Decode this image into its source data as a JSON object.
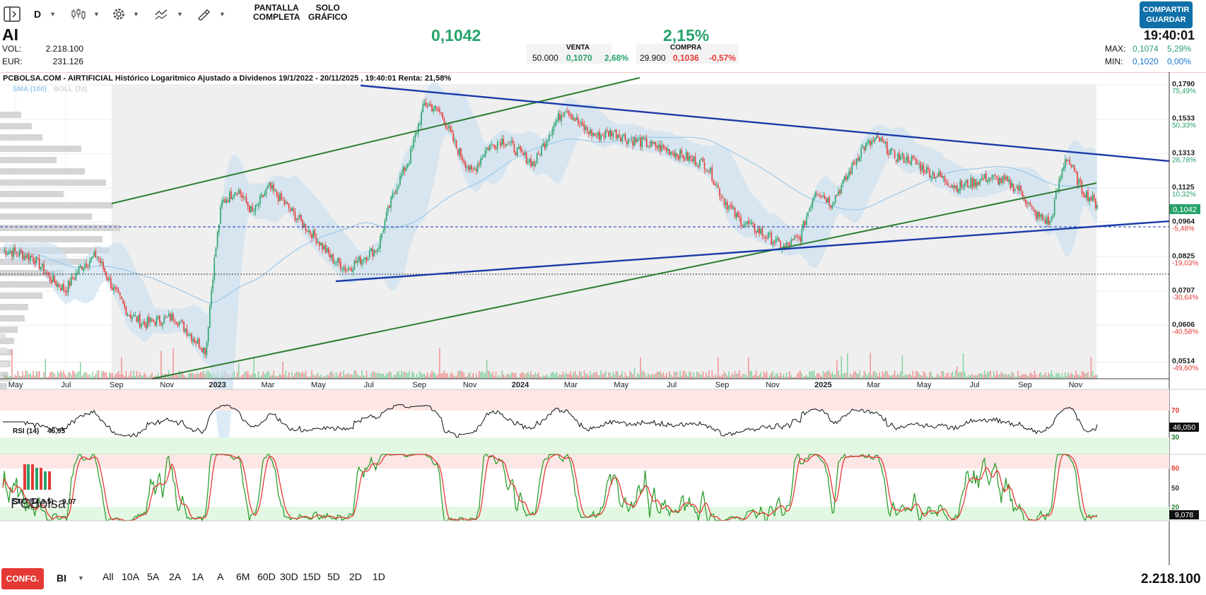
{
  "toolbar": {
    "period": "D",
    "fullscreen_label_1": "PANTALLA",
    "fullscreen_label_2": "COMPLETA",
    "only_chart_label_1": "SOLO",
    "only_chart_label_2": "GRÁFICO",
    "share_label_1": "COMPARTIR",
    "share_label_2": "GUARDAR"
  },
  "quote": {
    "ticker": "AI",
    "vol_label": "VOL:",
    "vol_value": "2.218.100",
    "eur_label": "EUR:",
    "eur_value": "231.126",
    "last_price": "0,1042",
    "change_pct": "2,15%",
    "time": "19:40:01",
    "max_label": "MAX:",
    "max_value": "0,1074",
    "max_pct": "5,29%",
    "min_label": "MIN:",
    "min_value": "0,1020",
    "min_pct": "0,00%"
  },
  "orderbook": {
    "sell_header": "VENTA",
    "buy_header": "COMPRA",
    "sell_qty": "50.000",
    "sell_price": "0,1070",
    "sell_pct": "2,68%",
    "buy_qty": "29.900",
    "buy_price": "0,1036",
    "buy_pct": "-0,57%"
  },
  "chart_title": "PCBOLSA.COM - AIRTIFICIAL Histórico Logaritmico Ajustado a Dividenos 19/1/2022 - 20/11/2025 , 19:40:01 Renta: 21,58%",
  "indicators": {
    "sma_label": "SMA (100)",
    "boll_label": "BOLL (20)",
    "rsi_label": "RSI (14)",
    "rsi_value": "46,05",
    "rsi_box": "46,050",
    "sto_label": "STO (14,3,5)",
    "sto_value": "9,07",
    "sto_box": "9,078"
  },
  "logo_text": "PCBolsa",
  "bottom": {
    "config_label": "CONFG.",
    "mode": "BI",
    "periods": [
      "All",
      "10A",
      "5A",
      "2A",
      "1A",
      "A",
      "6M",
      "60D",
      "30D",
      "15D",
      "5D",
      "2D",
      "1D"
    ],
    "volume_total": "2.218.100"
  },
  "colors": {
    "up": "#26a269",
    "down": "#e53935",
    "trend_blue": "#1a3aa8",
    "trend_green": "#2e7d32",
    "band": "#c7def0",
    "accent": "#0f6fa8"
  },
  "chart_data": {
    "type": "candlestick",
    "y_scale": "log",
    "x_ticks": [
      "May",
      "Jul",
      "Sep",
      "Nov",
      "2023",
      "Mar",
      "May",
      "Jul",
      "Sep",
      "Nov",
      "2024",
      "Mar",
      "May",
      "Jul",
      "Sep",
      "Nov",
      "2025",
      "Mar",
      "May",
      "Jul",
      "Sep",
      "Nov"
    ],
    "price_ticks": [
      {
        "price": "0,1790",
        "pct": "75,49%"
      },
      {
        "price": "0,1533",
        "pct": "50,33%"
      },
      {
        "price": "0,1313",
        "pct": "28,78%"
      },
      {
        "price": "0,1125",
        "pct": "10,32%"
      },
      {
        "price": "0,0964",
        "pct": "-5,48%"
      },
      {
        "price": "0,0825",
        "pct": "-19,03%"
      },
      {
        "price": "0,0707",
        "pct": "-30,64%"
      },
      {
        "price": "0,0606",
        "pct": "-40,58%"
      },
      {
        "price": "0,0514",
        "pct": "-49,60%"
      }
    ],
    "last_price_tag": "0,1042",
    "price_series_approx": [
      0.085,
      0.084,
      0.082,
      0.075,
      0.071,
      0.079,
      0.083,
      0.072,
      0.064,
      0.061,
      0.062,
      0.063,
      0.058,
      0.054,
      0.105,
      0.112,
      0.1,
      0.113,
      0.105,
      0.097,
      0.09,
      0.082,
      0.078,
      0.082,
      0.086,
      0.11,
      0.128,
      0.165,
      0.158,
      0.135,
      0.12,
      0.135,
      0.14,
      0.132,
      0.125,
      0.145,
      0.162,
      0.148,
      0.142,
      0.145,
      0.14,
      0.138,
      0.135,
      0.132,
      0.128,
      0.125,
      0.108,
      0.098,
      0.094,
      0.09,
      0.086,
      0.09,
      0.112,
      0.105,
      0.118,
      0.135,
      0.14,
      0.13,
      0.128,
      0.122,
      0.118,
      0.113,
      0.115,
      0.118,
      0.116,
      0.112,
      0.1,
      0.096,
      0.13,
      0.112,
      0.1042
    ],
    "rsi": {
      "levels": [
        70,
        30
      ],
      "last": 46.05
    },
    "stochastic": {
      "levels": [
        80,
        50,
        20
      ],
      "last": 9.07
    }
  }
}
